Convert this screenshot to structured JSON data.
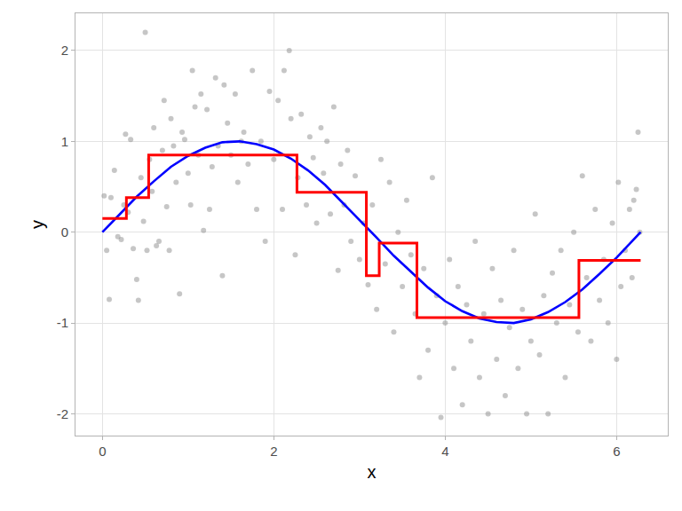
{
  "chart_data": {
    "type": "line",
    "x_label": "x",
    "y_label": "y",
    "xlim": [
      -0.314,
      6.597
    ],
    "ylim": [
      -2.24,
      2.41
    ],
    "xticks": [
      0,
      2,
      4,
      6
    ],
    "yticks": [
      -2,
      -1,
      0,
      1,
      2
    ],
    "grid": true,
    "series": [
      {
        "type": "scatter",
        "color": "#808080",
        "marker": "circle",
        "x": [
          0.02,
          0.05,
          0.08,
          0.1,
          0.14,
          0.18,
          0.22,
          0.25,
          0.27,
          0.3,
          0.33,
          0.36,
          0.4,
          0.42,
          0.45,
          0.48,
          0.5,
          0.52,
          0.55,
          0.58,
          0.6,
          0.63,
          0.66,
          0.7,
          0.72,
          0.75,
          0.78,
          0.8,
          0.83,
          0.86,
          0.9,
          0.93,
          0.96,
          1.0,
          1.03,
          1.05,
          1.08,
          1.12,
          1.15,
          1.18,
          1.22,
          1.25,
          1.28,
          1.32,
          1.35,
          1.4,
          1.42,
          1.46,
          1.5,
          1.55,
          1.58,
          1.62,
          1.65,
          1.7,
          1.75,
          1.8,
          1.85,
          1.9,
          1.95,
          2.0,
          2.05,
          2.1,
          2.12,
          2.18,
          2.2,
          2.25,
          2.28,
          2.32,
          2.38,
          2.42,
          2.46,
          2.5,
          2.55,
          2.58,
          2.62,
          2.66,
          2.7,
          2.75,
          2.78,
          2.82,
          2.86,
          2.9,
          2.95,
          3.0,
          3.05,
          3.1,
          3.15,
          3.2,
          3.25,
          3.3,
          3.35,
          3.4,
          3.45,
          3.5,
          3.55,
          3.6,
          3.65,
          3.7,
          3.75,
          3.8,
          3.85,
          3.9,
          3.95,
          4.0,
          4.05,
          4.1,
          4.15,
          4.2,
          4.25,
          4.3,
          4.35,
          4.4,
          4.45,
          4.5,
          4.55,
          4.6,
          4.65,
          4.7,
          4.75,
          4.8,
          4.85,
          4.9,
          4.95,
          5.0,
          5.05,
          5.1,
          5.15,
          5.2,
          5.25,
          5.3,
          5.35,
          5.4,
          5.45,
          5.5,
          5.55,
          5.6,
          5.65,
          5.7,
          5.75,
          5.8,
          5.85,
          5.9,
          5.95,
          6.0,
          6.02,
          6.05,
          6.1,
          6.15,
          6.18,
          6.2,
          6.23,
          6.25,
          6.27
        ],
        "values": [
          0.4,
          -0.2,
          -0.74,
          0.38,
          0.68,
          -0.05,
          -0.08,
          0.3,
          1.08,
          0.22,
          1.02,
          -0.18,
          -0.52,
          -0.75,
          0.6,
          0.12,
          2.2,
          -0.2,
          0.8,
          0.45,
          1.15,
          -0.15,
          -0.1,
          0.9,
          1.45,
          0.28,
          -0.2,
          1.25,
          0.95,
          0.55,
          -0.68,
          1.1,
          1.02,
          0.65,
          0.3,
          1.78,
          1.38,
          0.85,
          1.52,
          0.02,
          1.35,
          0.25,
          0.72,
          1.7,
          0.95,
          -0.48,
          1.62,
          1.2,
          0.85,
          1.52,
          0.55,
          1.0,
          1.1,
          0.75,
          1.78,
          0.25,
          1.0,
          -0.1,
          1.55,
          0.8,
          1.45,
          0.25,
          1.78,
          2.0,
          1.25,
          -0.25,
          0.6,
          1.3,
          0.3,
          1.05,
          0.82,
          0.1,
          1.15,
          0.65,
          1.0,
          0.2,
          1.38,
          -0.42,
          0.75,
          0.3,
          0.9,
          -0.1,
          0.62,
          -0.3,
          0.1,
          -0.58,
          0.3,
          -0.85,
          0.8,
          -0.35,
          0.55,
          -1.1,
          0.0,
          -0.6,
          0.35,
          -0.25,
          -0.9,
          -1.6,
          -0.4,
          -1.3,
          0.6,
          -0.7,
          -2.04,
          -1.0,
          -0.3,
          -1.5,
          -0.6,
          -1.9,
          -0.8,
          -1.2,
          -0.1,
          -1.6,
          -0.9,
          -2.0,
          -0.4,
          -1.4,
          -0.75,
          -1.8,
          -1.05,
          -0.2,
          -1.5,
          -0.85,
          -2.0,
          -1.2,
          0.2,
          -1.35,
          -0.7,
          -2.0,
          -0.45,
          -1.0,
          -0.2,
          -1.6,
          -0.8,
          0.0,
          -1.1,
          0.62,
          -0.5,
          -1.2,
          0.25,
          -0.75,
          -0.3,
          -1.0,
          0.1,
          -1.4,
          0.55,
          -0.6,
          -0.2,
          0.25,
          -0.5,
          0.35,
          0.47,
          1.1,
          0.0
        ]
      },
      {
        "type": "line",
        "color": "#0000ff",
        "line_style": "solid",
        "x": [
          0,
          0.2,
          0.4,
          0.6,
          0.8,
          1.0,
          1.2,
          1.4,
          1.6,
          1.8,
          2.0,
          2.2,
          2.4,
          2.6,
          2.8,
          3.0,
          3.2,
          3.4,
          3.6,
          3.8,
          4.0,
          4.2,
          4.4,
          4.6,
          4.8,
          5.0,
          5.2,
          5.4,
          5.6,
          5.8,
          6.0,
          6.2,
          6.28
        ],
        "values": [
          0,
          0.2,
          0.39,
          0.56,
          0.72,
          0.84,
          0.93,
          0.99,
          1.0,
          0.97,
          0.91,
          0.81,
          0.68,
          0.52,
          0.33,
          0.14,
          -0.06,
          -0.26,
          -0.44,
          -0.61,
          -0.76,
          -0.87,
          -0.95,
          -0.99,
          -1.0,
          -0.96,
          -0.88,
          -0.77,
          -0.63,
          -0.46,
          -0.28,
          -0.08,
          0
        ]
      },
      {
        "type": "line",
        "color": "#ff0000",
        "line_style": "step",
        "x": [
          0,
          0.28,
          0.54,
          2.27,
          3.08,
          3.23,
          3.67,
          5.56,
          6.28
        ],
        "values": [
          0.15,
          0.38,
          0.85,
          0.44,
          -0.48,
          -0.12,
          -0.94,
          -0.31,
          -0.31
        ]
      }
    ]
  }
}
